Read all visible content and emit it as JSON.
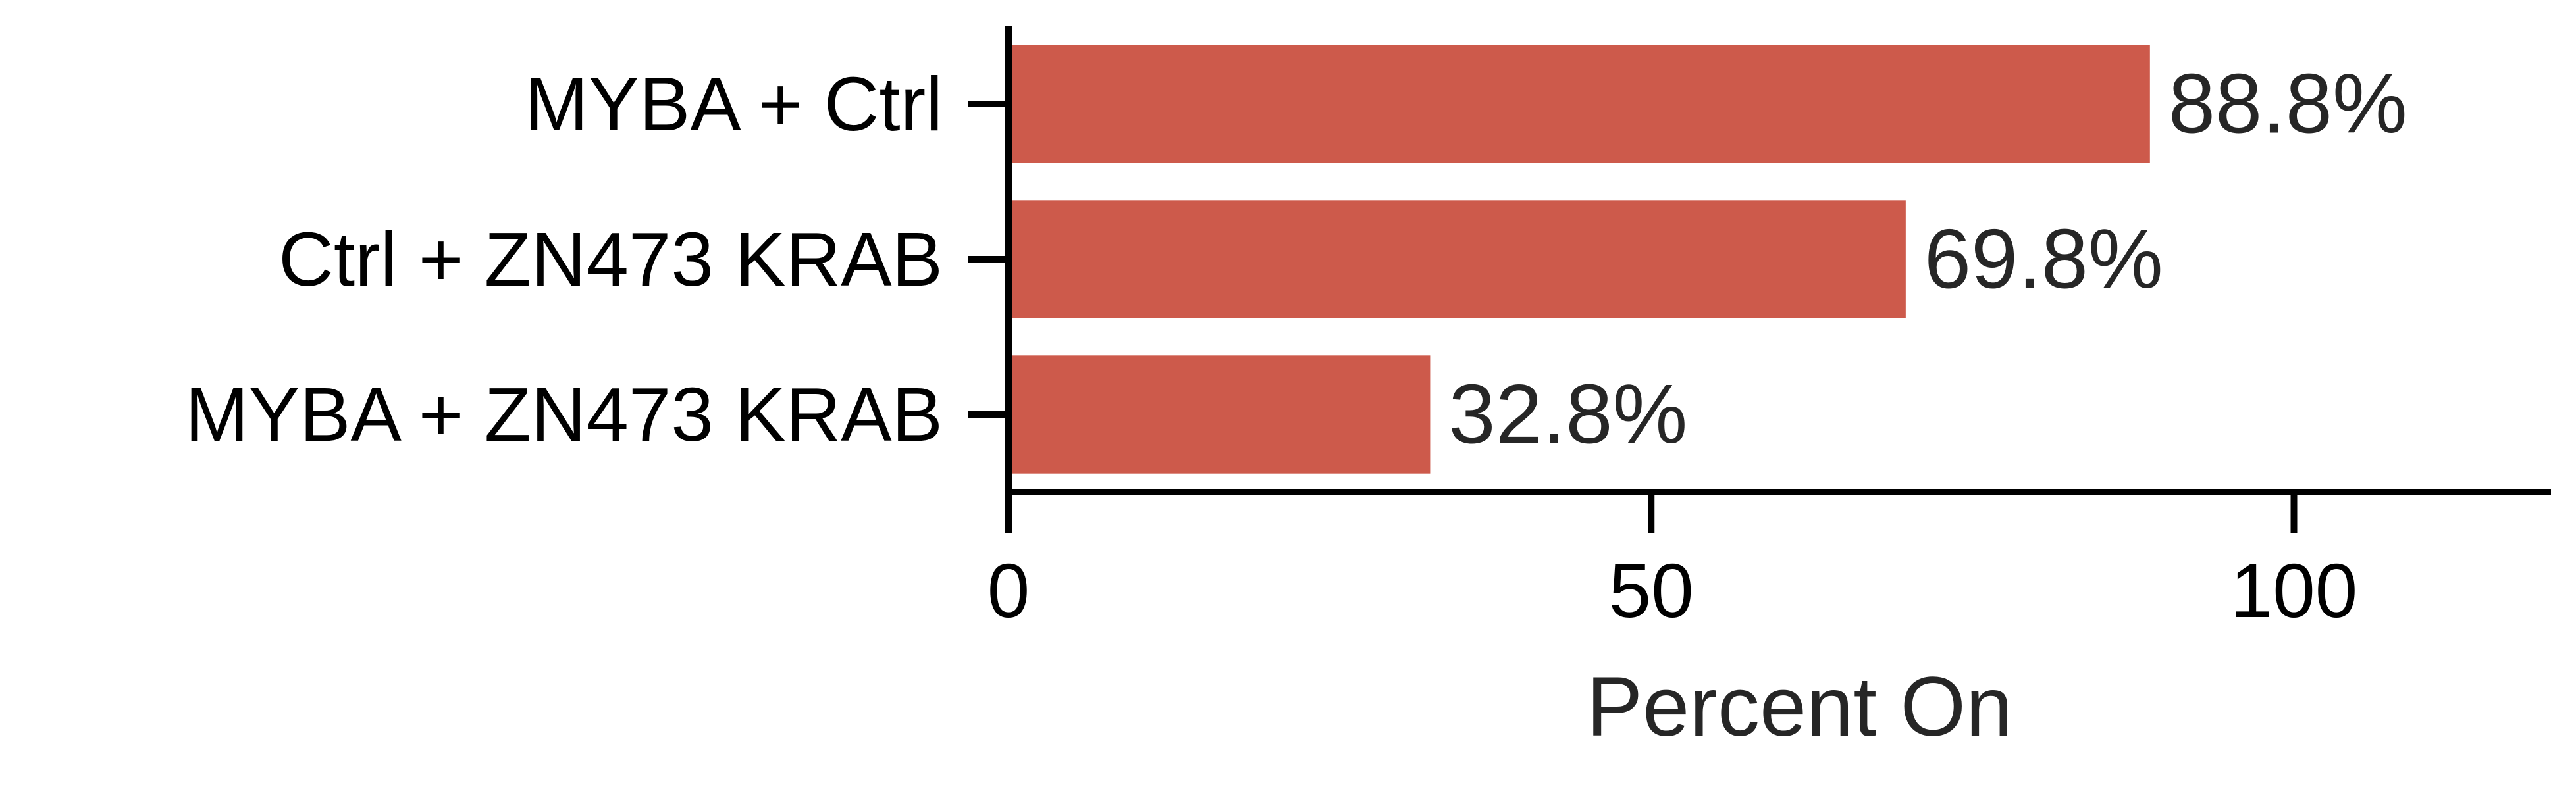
{
  "chart_data": {
    "type": "bar",
    "orientation": "horizontal",
    "categories": [
      "MYBA + Ctrl",
      "Ctrl + ZN473 KRAB",
      "MYBA + ZN473 KRAB"
    ],
    "values": [
      88.8,
      69.8,
      32.8
    ],
    "data_labels": [
      "88.8%",
      "69.8%",
      "32.8%"
    ],
    "xlabel": "Percent On",
    "ylabel": "",
    "xlim": [
      0,
      120
    ],
    "xticks": [
      0,
      50,
      100
    ],
    "xtick_labels": [
      "0",
      "50",
      "100"
    ],
    "bar_color": "#cd5a4b",
    "grid": false,
    "legend": "none"
  }
}
